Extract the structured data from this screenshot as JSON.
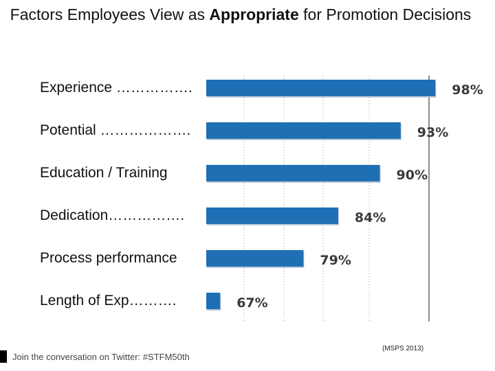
{
  "title": {
    "before": "Factors Employees View as ",
    "emphasis": "Appropriate",
    "after": " for Promotion Decisions"
  },
  "chart_data": {
    "type": "bar",
    "orientation": "horizontal",
    "categories": [
      "Experience …………….",
      "Potential ……………….",
      "Education / Training",
      "Dedication…………….",
      "Process performance",
      "Length of Exp………."
    ],
    "values": [
      98,
      93,
      90,
      84,
      79,
      67
    ],
    "value_labels": [
      "98%",
      "93%",
      "90%",
      "84%",
      "79%",
      "67%"
    ],
    "bar_color": "#1f6fb5",
    "grid": true,
    "xlim": [
      65,
      100
    ]
  },
  "footer": {
    "text": "Join the conversation on Twitter: #STFM50th"
  },
  "source": "(MSPS 2013)"
}
